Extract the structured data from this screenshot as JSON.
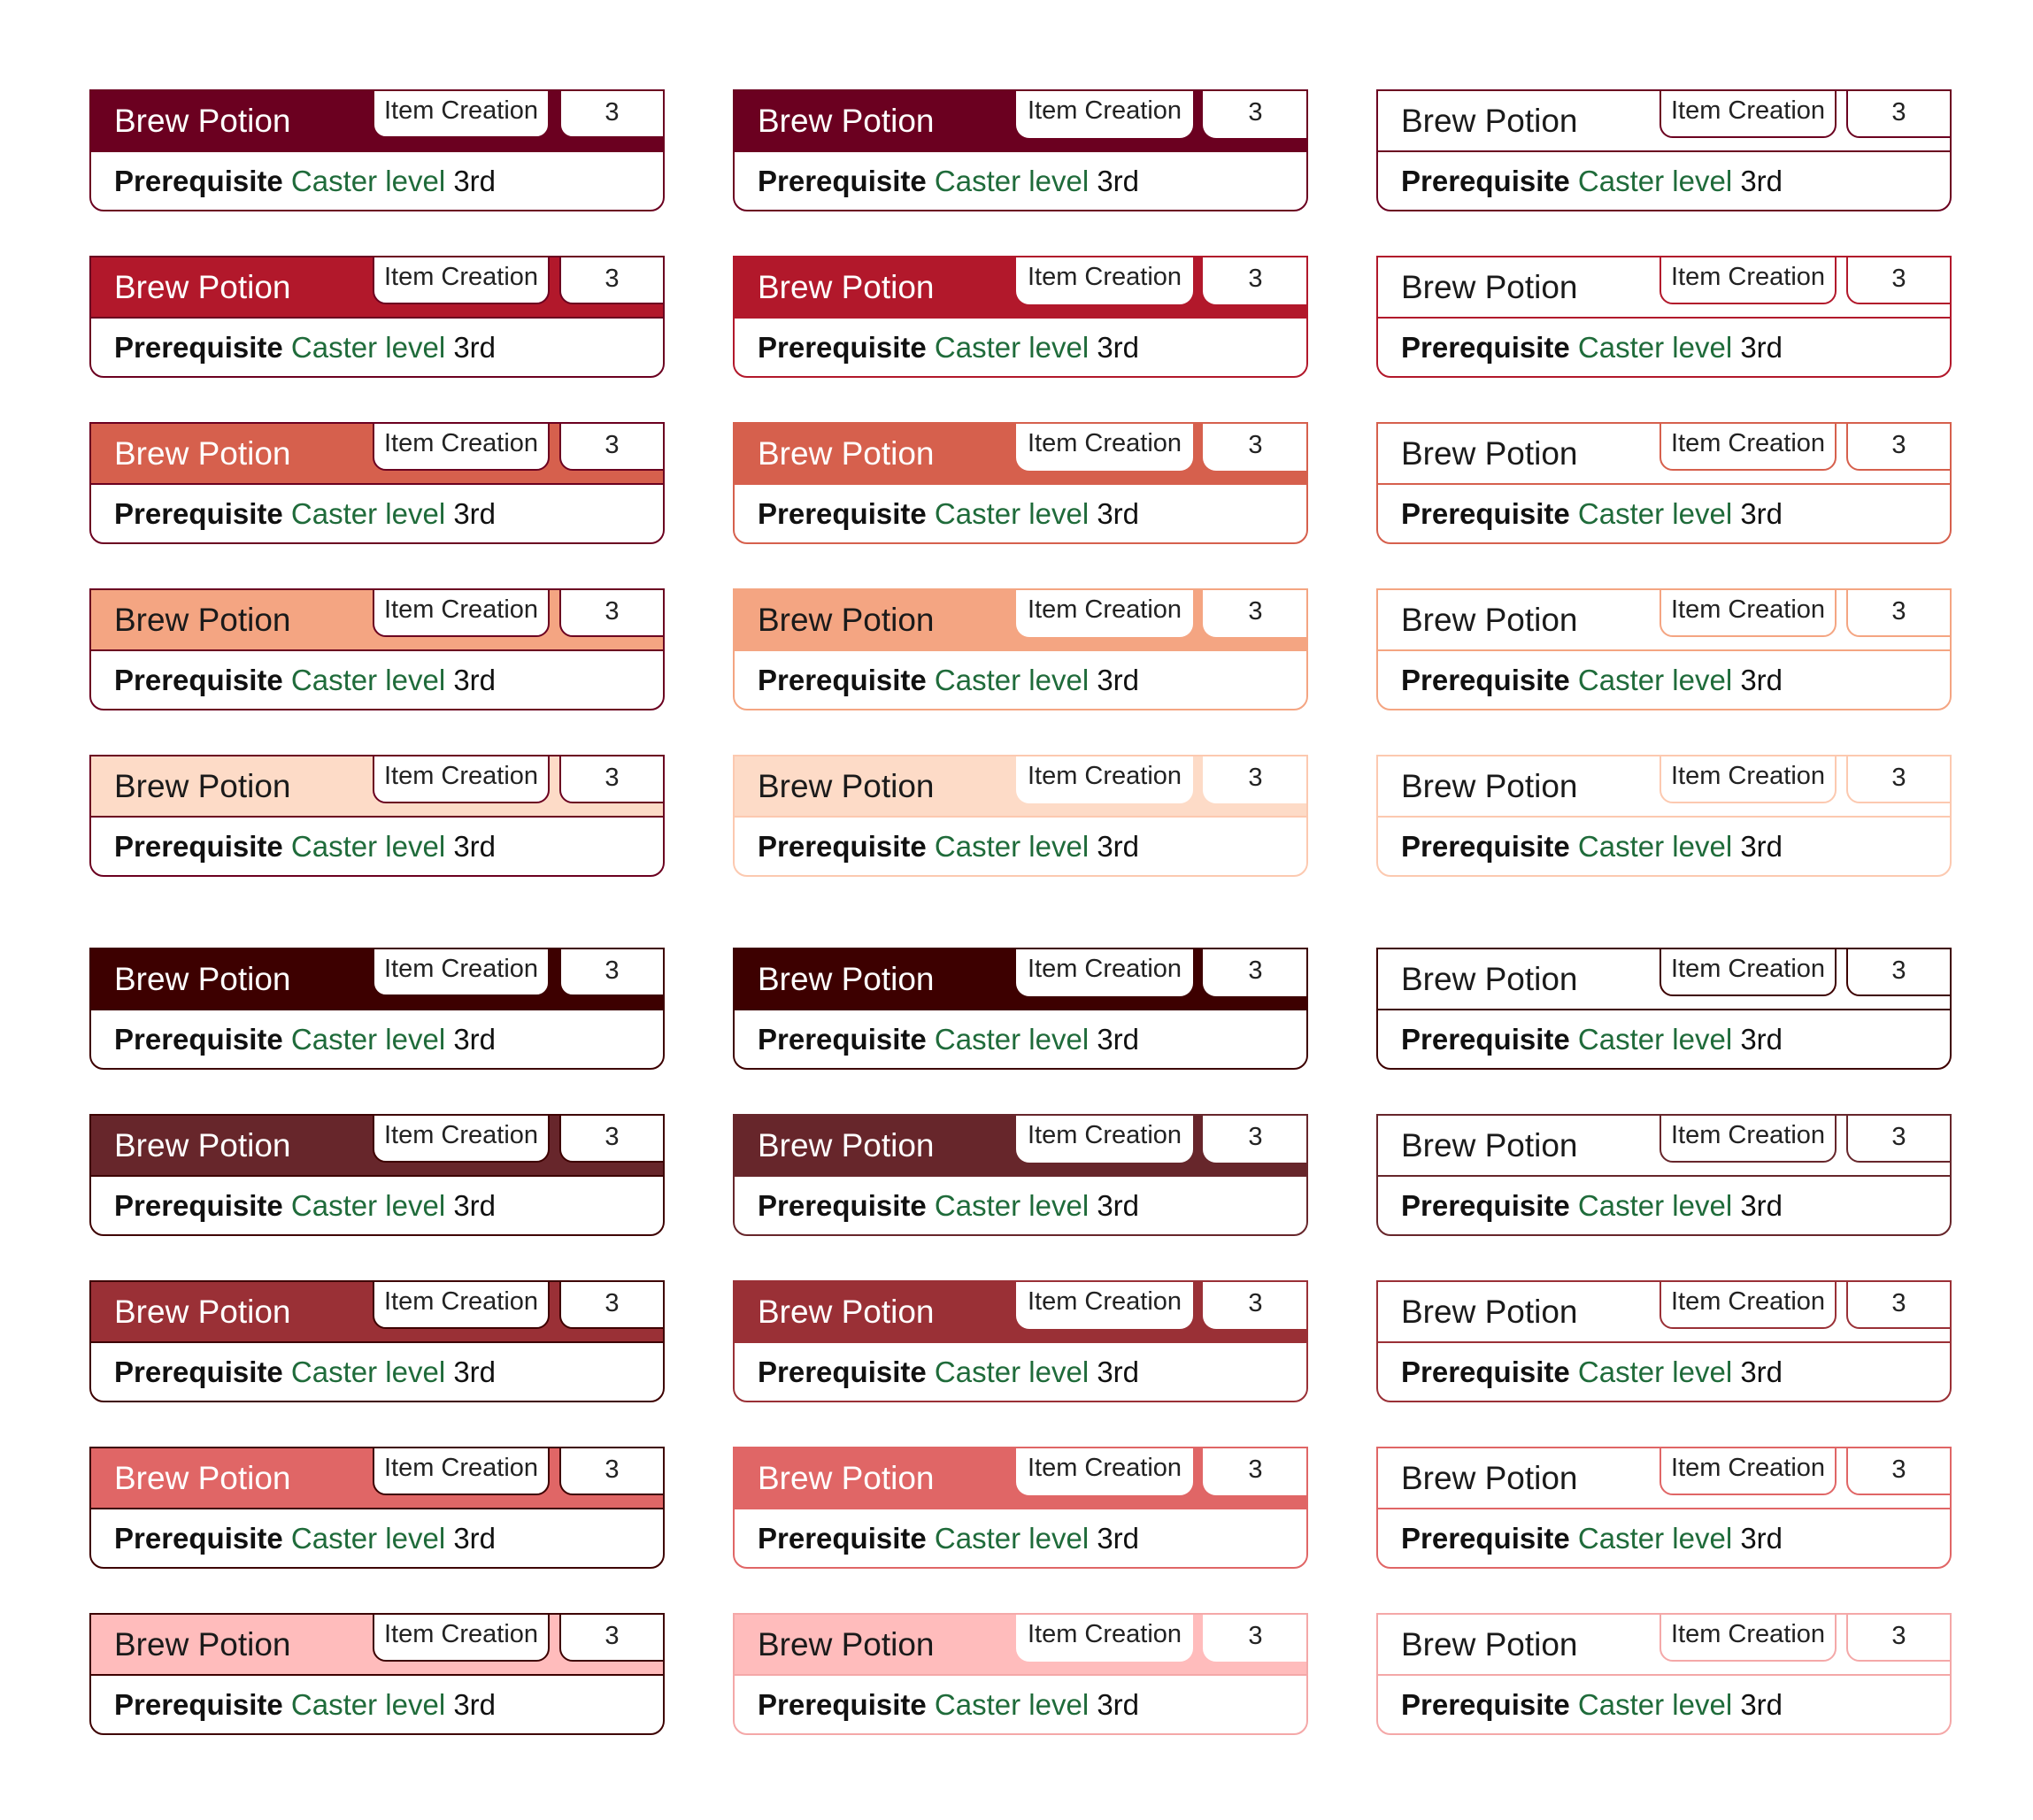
{
  "card": {
    "title": "Brew Potion",
    "category": "Item Creation",
    "level": "3",
    "prerequisite_label": "Prerequisite",
    "prerequisite_link": "Caster level",
    "prerequisite_value": "3rd"
  },
  "colors": {
    "link": "#1f6b3a",
    "palette": [
      {
        "fill": "#6b0020",
        "border": "#6b0020",
        "title_color": "#ffffff"
      },
      {
        "fill": "#b2182b",
        "border": "#b2182b",
        "title_color": "#ffffff"
      },
      {
        "fill": "#d6604d",
        "border": "#d6604d",
        "title_color": "#ffffff"
      },
      {
        "fill": "#f4a582",
        "border": "#f4a582",
        "title_color": "#1a1a1a"
      },
      {
        "fill": "#fddbc7",
        "border": "#fcc9b0",
        "title_color": "#1a1a1a"
      },
      {
        "fill": "#3d0000",
        "border": "#3d0000",
        "title_color": "#ffffff"
      },
      {
        "fill": "#67262b",
        "border": "#67262b",
        "title_color": "#ffffff"
      },
      {
        "fill": "#9a3036",
        "border": "#9a3036",
        "title_color": "#ffffff"
      },
      {
        "fill": "#e06666",
        "border": "#e06666",
        "title_color": "#ffffff"
      },
      {
        "fill": "#ffbcbc",
        "border": "#f4a8a8",
        "title_color": "#1a1a1a"
      }
    ]
  }
}
